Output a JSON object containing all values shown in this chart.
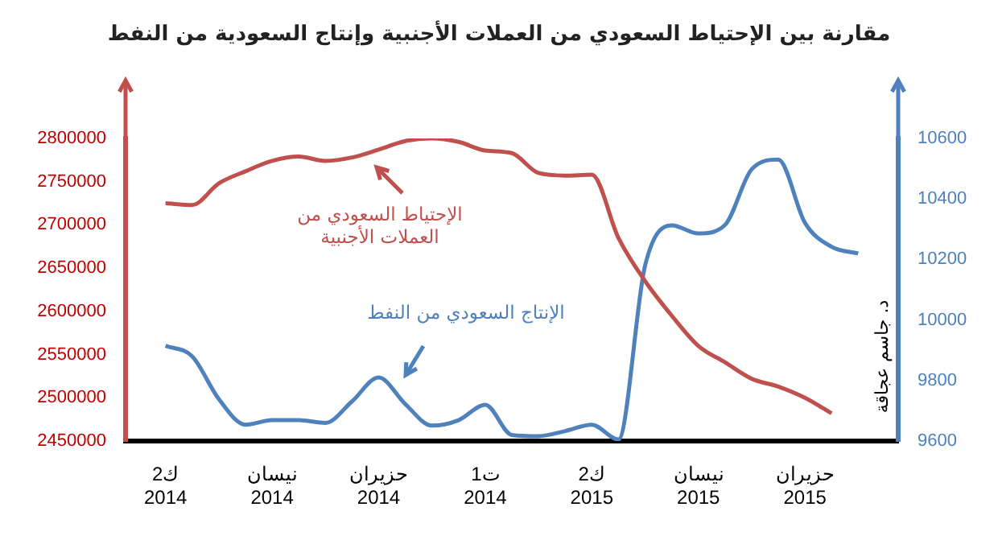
{
  "chart_data": {
    "type": "line",
    "title": "مقارنة بين الإحتياط السعودي من العملات الأجنبية وإنتاج السعودية من النفط",
    "categories": [
      null,
      "ك2\n2014",
      null,
      null,
      null,
      "نيسان\n2014",
      null,
      null,
      null,
      "حزيران\n2014",
      null,
      null,
      null,
      "ت1\n2014",
      null,
      null,
      null,
      "ك2\n2015",
      null,
      null,
      null,
      "نيسان\n2015",
      null,
      null,
      null,
      "حزيران\n2015",
      null,
      null,
      null
    ],
    "series": [
      {
        "name": "الإحتياط السعودي من العملات الأجنبية",
        "color": "#c0504d",
        "values": [
          null,
          2725000,
          2723000,
          2748000,
          2762000,
          2774000,
          2779000,
          2774000,
          2778000,
          2787000,
          2797000,
          2800000,
          2796000,
          2786000,
          2783000,
          2760000,
          2757000,
          2758000,
          2685000,
          2635000,
          2595000,
          2560000,
          2541000,
          2522000,
          2513000,
          2500000,
          2482000,
          null,
          null
        ]
      },
      {
        "name": "الإنتاج السعودي من النفط",
        "color": "#4f81bd",
        "axis": "y2",
        "values": [
          null,
          9915,
          9880,
          9739,
          9654,
          9669,
          9669,
          9660,
          9731,
          9810,
          9722,
          9651,
          9669,
          9720,
          9620,
          9616,
          9633,
          9654,
          9605,
          10180,
          10313,
          10286,
          10314,
          10498,
          10530,
          10321,
          10242,
          10220,
          null
        ]
      }
    ],
    "ylim": [
      2450000,
      2800000
    ],
    "yticks": [
      2450000,
      2500000,
      2550000,
      2600000,
      2650000,
      2700000,
      2750000,
      2800000
    ],
    "y2lim": [
      9600,
      10600
    ],
    "y2ticks": [
      9600,
      9800,
      10000,
      10200,
      10400,
      10600
    ],
    "annotations": [
      "د. جاسم عجاقة"
    ],
    "grid": false,
    "marker": "none"
  }
}
